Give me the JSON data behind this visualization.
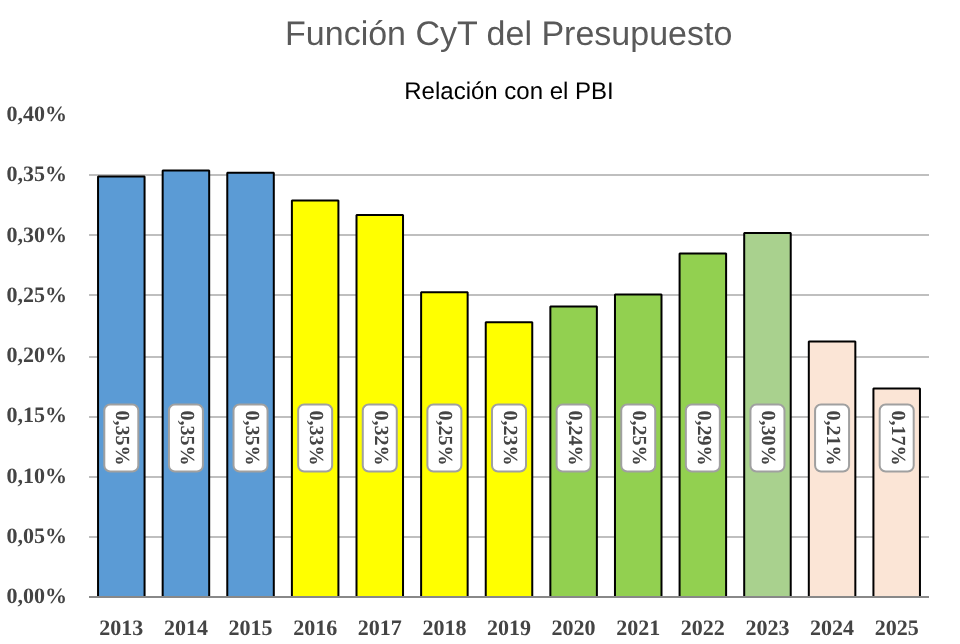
{
  "chart_data": {
    "type": "bar",
    "title": "Función CyT del Presupuesto",
    "subtitle": "Relación con el PBI",
    "categories": [
      "2013",
      "2014",
      "2015",
      "2016",
      "2017",
      "2018",
      "2019",
      "2020",
      "2021",
      "2022",
      "2023",
      "2024",
      "2025"
    ],
    "values": [
      0.349,
      0.354,
      0.352,
      0.329,
      0.317,
      0.253,
      0.228,
      0.241,
      0.251,
      0.285,
      0.302,
      0.212,
      0.173
    ],
    "value_labels": [
      "0,35%",
      "0,35%",
      "0,35%",
      "0,33%",
      "0,32%",
      "0,25%",
      "0,23%",
      "0,24%",
      "0,25%",
      "0,29%",
      "0,30%",
      "0,21%",
      "0,17%"
    ],
    "colors": [
      "#5b9bd5",
      "#5b9bd5",
      "#5b9bd5",
      "#ffff00",
      "#ffff00",
      "#ffff00",
      "#ffff00",
      "#92d050",
      "#92d050",
      "#92d050",
      "#a9d18e",
      "#fbe5d6",
      "#fbe5d6"
    ],
    "ylim": [
      0,
      0.4
    ],
    "yticks": [
      {
        "value": 0,
        "label": "0,00%"
      },
      {
        "value": 0.05,
        "label": "0,05%"
      },
      {
        "value": 0.1,
        "label": "0,10%"
      },
      {
        "value": 0.15,
        "label": "0,15%"
      },
      {
        "value": 0.2,
        "label": "0,20%"
      },
      {
        "value": 0.25,
        "label": "0,25%"
      },
      {
        "value": 0.3,
        "label": "0,30%"
      },
      {
        "value": 0.35,
        "label": "0,35%"
      },
      {
        "value": 0.4,
        "label": "0,40%"
      }
    ],
    "grid": "y"
  }
}
